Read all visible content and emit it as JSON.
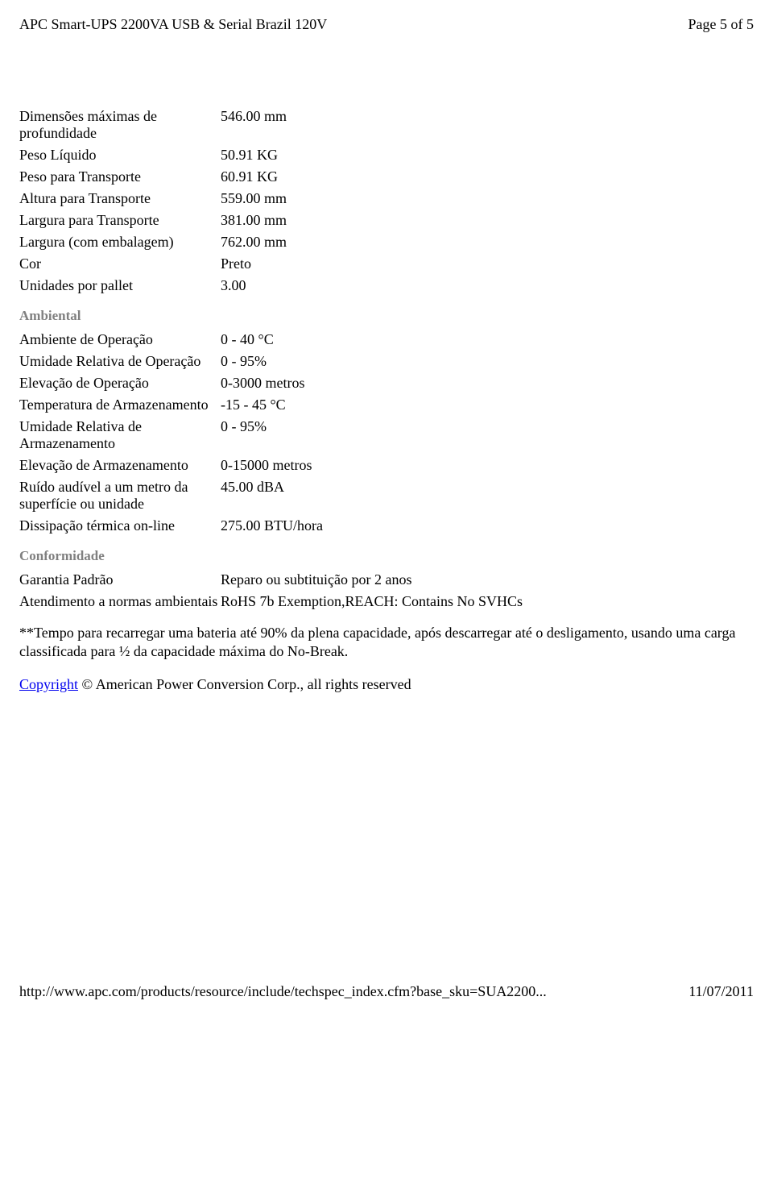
{
  "header": {
    "title": "APC Smart-UPS 2200VA USB & Serial Brazil 120V",
    "page_indicator": "Page 5 of 5"
  },
  "physical": {
    "rows": [
      {
        "label": "Dimensões máximas de profundidade",
        "value": "546.00 mm"
      },
      {
        "label": "Peso Líquido",
        "value": "50.91 KG"
      },
      {
        "label": "Peso para Transporte",
        "value": "60.91 KG"
      },
      {
        "label": "Altura para Transporte",
        "value": "559.00 mm"
      },
      {
        "label": "Largura para Transporte",
        "value": "381.00 mm"
      },
      {
        "label": "Largura (com embalagem)",
        "value": "762.00 mm"
      },
      {
        "label": "Cor",
        "value": "Preto"
      },
      {
        "label": "Unidades por pallet",
        "value": "3.00"
      }
    ]
  },
  "ambiental": {
    "heading": "Ambiental",
    "rows": [
      {
        "label": "Ambiente de Operação",
        "value": "0 - 40 °C"
      },
      {
        "label": "Umidade Relativa de Operação",
        "value": "0 - 95%"
      },
      {
        "label": "Elevação de Operação",
        "value": "0-3000 metros"
      },
      {
        "label": "Temperatura de Armazenamento",
        "value": "-15 - 45 °C"
      },
      {
        "label": "Umidade Relativa de Armazenamento",
        "value": "0 - 95%"
      },
      {
        "label": "Elevação de Armazenamento",
        "value": "0-15000 metros"
      },
      {
        "label": "Ruído audível a um metro da superfície ou unidade",
        "value": "45.00 dBA"
      },
      {
        "label": "Dissipação térmica on-line",
        "value": "275.00 BTU/hora"
      }
    ]
  },
  "conformidade": {
    "heading": "Conformidade",
    "rows": [
      {
        "label": "Garantia Padrão",
        "value": "Reparo ou subtituição por 2 anos"
      },
      {
        "label": "Atendimento a normas ambientais",
        "value": "RoHS 7b Exemption,REACH: Contains No SVHCs"
      }
    ]
  },
  "footnote": "**Tempo para recarregar uma bateria até 90% da plena capacidade, após descarregar até o desligamento, usando uma carga classificada para ½ da capacidade máxima do No-Break.",
  "copyright": {
    "link_text": "Copyright",
    "rest": " © American Power Conversion Corp., all rights reserved"
  },
  "footer": {
    "url": "http://www.apc.com/products/resource/include/techspec_index.cfm?base_sku=SUA2200...",
    "date": "11/07/2011"
  }
}
